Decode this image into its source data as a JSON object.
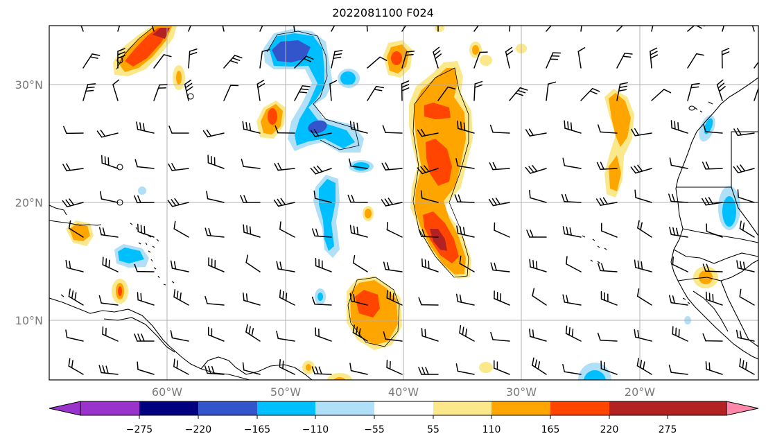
{
  "title": "2022081100 F024",
  "map": {
    "lat_labels": [
      "30°N",
      "20°N",
      "10°N"
    ],
    "lon_labels": [
      "60°W",
      "50°W",
      "40°W",
      "30°W",
      "20°W"
    ],
    "frame_color": "#000000",
    "grid_color": "#b0b0b0"
  },
  "colorbar": {
    "labels": [
      "−275",
      "−220",
      "−165",
      "−110",
      "−55",
      "55",
      "110",
      "165",
      "220",
      "275"
    ],
    "colors": [
      "#9933cc",
      "#000080",
      "#3355cc",
      "#00bfff",
      "#b0e0f8",
      "#ffffff",
      "#fbe88a",
      "#ffa500",
      "#ff4500",
      "#b22222",
      "#ff88aa"
    ]
  },
  "fill_colors": {
    "blue_light": "#b0e0f8",
    "blue_mid": "#00bfff",
    "blue_dark": "#3355cc",
    "yellow": "#fbe88a",
    "orange": "#ffa500",
    "red": "#ff4500",
    "dark_red": "#b22222"
  }
}
